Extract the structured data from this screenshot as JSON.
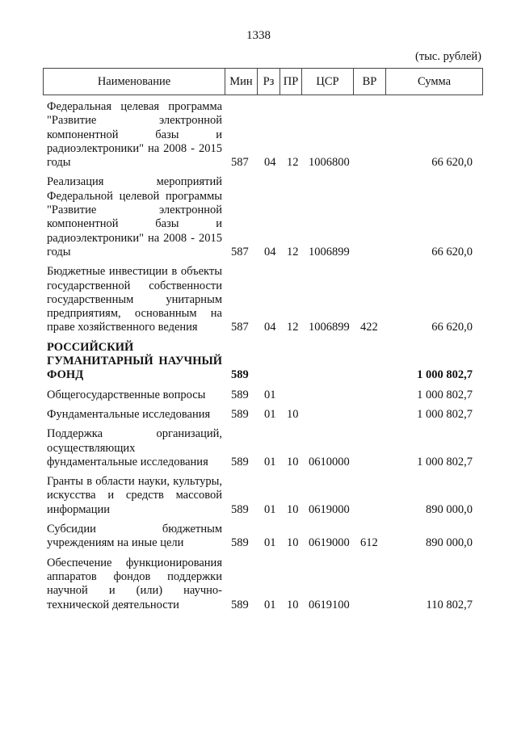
{
  "page_number": "1338",
  "units": "(тыс. рублей)",
  "headers": [
    "Наименование",
    "Мин",
    "Рз",
    "ПР",
    "ЦСР",
    "ВР",
    "Сумма"
  ],
  "rows": [
    {
      "name": "Федеральная целевая программа \"Развитие электронной компонентной базы и радиоэлектроники\" на 2008 - 2015 годы",
      "min": "587",
      "rz": "04",
      "pr": "12",
      "csr": "1006800",
      "vr": "",
      "sum": "66 620,0",
      "bold": false
    },
    {
      "name": "Реализация мероприятий Федеральной целевой программы \"Развитие электронной компонентной базы и радиоэлектроники\" на 2008 - 2015 годы",
      "min": "587",
      "rz": "04",
      "pr": "12",
      "csr": "1006899",
      "vr": "",
      "sum": "66 620,0",
      "bold": false
    },
    {
      "name": "Бюджетные инвестиции в объекты государственной собственности государственным унитарным предприятиям, основанным на праве хозяйственного ведения",
      "min": "587",
      "rz": "04",
      "pr": "12",
      "csr": "1006899",
      "vr": "422",
      "sum": "66 620,0",
      "bold": false
    },
    {
      "name": "РОССИЙСКИЙ ГУМАНИТАРНЫЙ НАУЧНЫЙ ФОНД",
      "min": "589",
      "rz": "",
      "pr": "",
      "csr": "",
      "vr": "",
      "sum": "1 000 802,7",
      "bold": true
    },
    {
      "name": "Общегосударственные вопросы",
      "min": "589",
      "rz": "01",
      "pr": "",
      "csr": "",
      "vr": "",
      "sum": "1 000 802,7",
      "bold": false
    },
    {
      "name": "Фундаментальные исследования",
      "min": "589",
      "rz": "01",
      "pr": "10",
      "csr": "",
      "vr": "",
      "sum": "1 000 802,7",
      "bold": false
    },
    {
      "name": "Поддержка организаций, осуществляющих фундаментальные исследования",
      "min": "589",
      "rz": "01",
      "pr": "10",
      "csr": "0610000",
      "vr": "",
      "sum": "1 000 802,7",
      "bold": false
    },
    {
      "name": "Гранты в области науки, культуры, искусства и средств массовой информации",
      "min": "589",
      "rz": "01",
      "pr": "10",
      "csr": "0619000",
      "vr": "",
      "sum": "890 000,0",
      "bold": false
    },
    {
      "name": "Субсидии бюджетным учреждениям на иные цели",
      "min": "589",
      "rz": "01",
      "pr": "10",
      "csr": "0619000",
      "vr": "612",
      "sum": "890 000,0",
      "bold": false
    },
    {
      "name": "Обеспечение функционирования аппаратов фондов поддержки научной и (или) научно-технической деятельности",
      "min": "589",
      "rz": "01",
      "pr": "10",
      "csr": "0619100",
      "vr": "",
      "sum": "110 802,7",
      "bold": false
    }
  ]
}
